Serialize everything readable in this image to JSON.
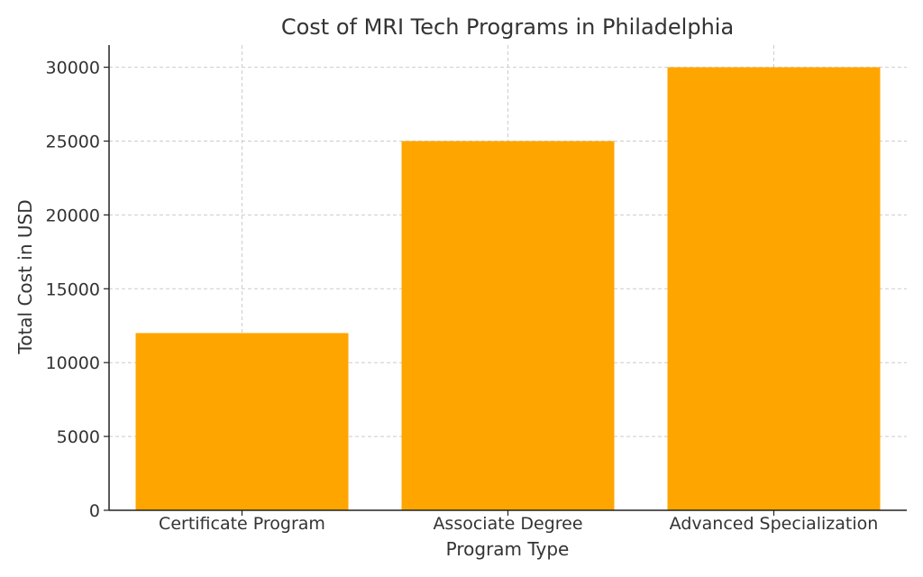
{
  "chart_data": {
    "type": "bar",
    "title": "Cost of MRI Tech Programs in Philadelphia",
    "xlabel": "Program Type",
    "ylabel": "Total Cost in USD",
    "categories": [
      "Certificate Program",
      "Associate Degree",
      "Advanced Specialization"
    ],
    "values": [
      12000,
      25000,
      30000
    ],
    "ylim": [
      0,
      31500
    ],
    "yticks": [
      0,
      5000,
      10000,
      15000,
      20000,
      25000,
      30000
    ],
    "grid": true,
    "bar_color": "#FFA500",
    "grid_color": "#CCCCCC",
    "axis_color": "#222222",
    "text_color": "#333333"
  }
}
